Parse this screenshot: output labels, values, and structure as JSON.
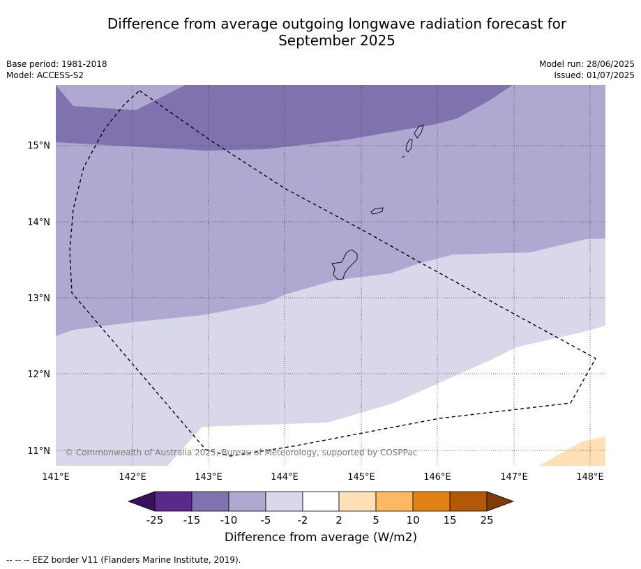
{
  "title_line1": "Difference from average outgoing longwave radiation forecast for",
  "title_line2": "September 2025",
  "meta": {
    "base_period": "Base period: 1981-2018",
    "model": "Model: ACCESS-S2",
    "model_run": "Model run: 28/06/2025",
    "issued": "Issued: 01/07/2025"
  },
  "axes": {
    "lat_labels": [
      "15°N",
      "14°N",
      "13°N",
      "12°N",
      "11°N"
    ],
    "lon_labels": [
      "141°E",
      "142°E",
      "143°E",
      "144°E",
      "145°E",
      "146°E",
      "147°E",
      "148°E"
    ]
  },
  "colorbar": {
    "title": "Difference from average (W/m2)",
    "ticks": [
      "-25",
      "-15",
      "-10",
      "-5",
      "-2",
      "2",
      "5",
      "10",
      "15",
      "25"
    ],
    "colors": {
      "below": "#3a0f5c",
      "c1": "#5a2a8a",
      "c2": "#8072ae",
      "c3": "#afa8d0",
      "c4": "#d8d8ea",
      "c5": "#ffffff",
      "c6": "#fde0b6",
      "c7": "#fdb863",
      "c8": "#e08214",
      "c9": "#b35806",
      "above": "#7f3b08"
    }
  },
  "copyright": "© Commonwealth of Australia 2025, Bureau of Meteorology, supported by COSPPac",
  "footnote": "--  --  -- EEZ border V11 (Flanders Marine Institute, 2019)."
}
